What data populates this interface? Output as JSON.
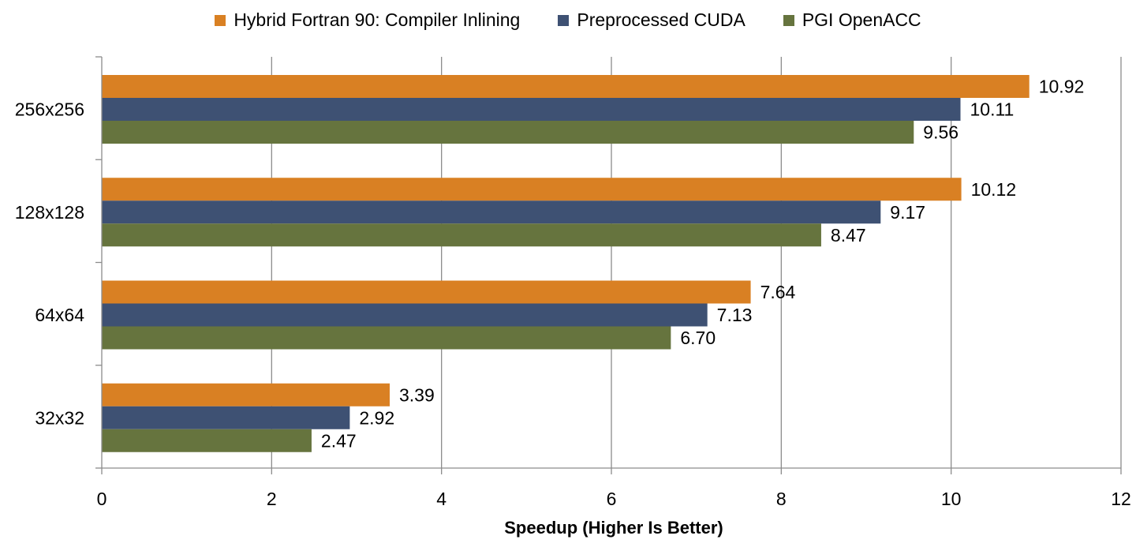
{
  "chart_data": {
    "type": "bar",
    "orientation": "horizontal",
    "title": "",
    "xlabel": "Speedup (Higher Is Better)",
    "ylabel": "",
    "xlim": [
      0,
      12
    ],
    "xticks": [
      "0",
      "2",
      "4",
      "6",
      "8",
      "10",
      "12"
    ],
    "grid": "vertical",
    "legend_position": "top",
    "categories": [
      "256x256",
      "128x128",
      "64x64",
      "32x32"
    ],
    "series": [
      {
        "name": "Hybrid Fortran 90: Compiler Inlining",
        "color": "#D98023",
        "values": [
          10.92,
          10.12,
          7.64,
          3.39
        ],
        "labels": [
          "10.92",
          "10.12",
          "7.64",
          "3.39"
        ]
      },
      {
        "name": "Preprocessed CUDA",
        "color": "#3E5173",
        "values": [
          10.11,
          9.17,
          7.13,
          2.92
        ],
        "labels": [
          "10.11",
          "9.17",
          "7.13",
          "2.92"
        ]
      },
      {
        "name": "PGI OpenACC",
        "color": "#66743E",
        "values": [
          9.56,
          8.47,
          6.7,
          2.47
        ],
        "labels": [
          "9.56",
          "8.47",
          "6.70",
          "2.47"
        ]
      }
    ]
  }
}
